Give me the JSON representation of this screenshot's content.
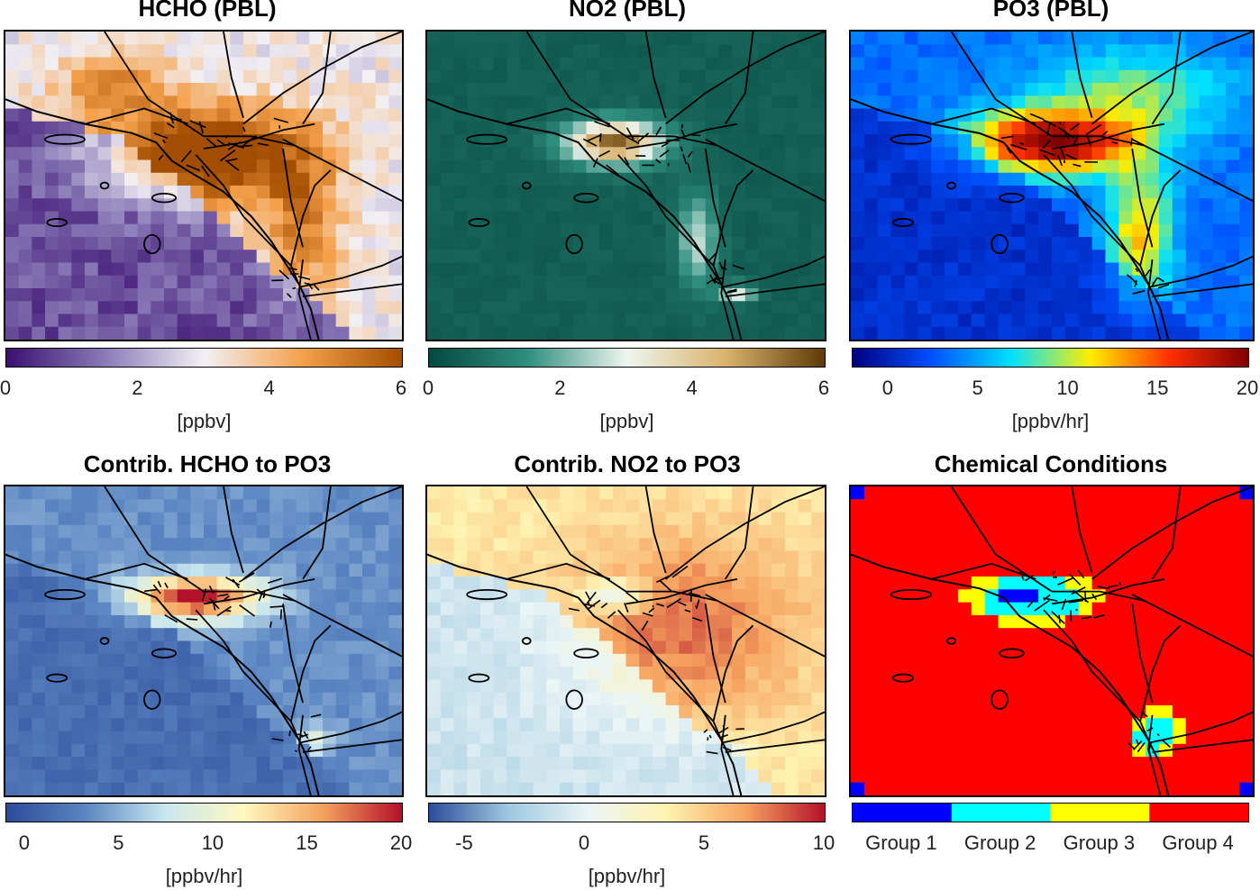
{
  "panels": [
    {
      "title": "HCHO (PBL)",
      "palette": "purple-orange",
      "field": "hcho",
      "ticks": [
        "0",
        "2",
        "4",
        "6"
      ],
      "unit": "[ppbv]",
      "colors": [
        "#3b0f70",
        "#8a7bb8",
        "#f2f0f4",
        "#f5a04a",
        "#a34d00"
      ]
    },
    {
      "title": "NO2 (PBL)",
      "palette": "teal-brown",
      "field": "no2",
      "ticks": [
        "0",
        "2",
        "4",
        "6"
      ],
      "unit": "[ppbv]",
      "colors": [
        "#06483f",
        "#2f8f7f",
        "#eef5ef",
        "#d9b36b",
        "#5e3a08"
      ]
    },
    {
      "title": "PO3 (PBL)",
      "palette": "jet",
      "field": "po3",
      "ticks": [
        "0",
        "5",
        "10",
        "15",
        "20"
      ],
      "unit": "[ppbv/hr]",
      "colors": [
        "#00007f",
        "#0050ff",
        "#00e0ff",
        "#ffee00",
        "#ff3000",
        "#7f0000"
      ]
    },
    {
      "title": "Contrib. HCHO to PO3",
      "palette": "blue-red",
      "field": "chcho",
      "ticks": [
        "0",
        "5",
        "10",
        "15",
        "20"
      ],
      "unit": "[ppbv/hr]",
      "colors": [
        "#2c4b9a",
        "#5b86c2",
        "#c9e6ef",
        "#fff8c0",
        "#f5a25e",
        "#b3102a"
      ]
    },
    {
      "title": "Contrib. NO2 to PO3",
      "palette": "blue-red",
      "field": "cno2",
      "ticks": [
        "-5",
        "0",
        "5",
        "10"
      ],
      "unit": "[ppbv/hr]",
      "colors": [
        "#2c4b9a",
        "#9ec8e0",
        "#eaf5f6",
        "#fff2b0",
        "#f6a35f",
        "#b3102a"
      ]
    },
    {
      "title": "Chemical Conditions",
      "palette": "groups",
      "field": "groups",
      "groups": [
        "Group 1",
        "Group 2",
        "Group 3",
        "Group 4"
      ],
      "colors": [
        "#0000ff",
        "#00ffff",
        "#ffff00",
        "#ff0000"
      ]
    }
  ]
}
